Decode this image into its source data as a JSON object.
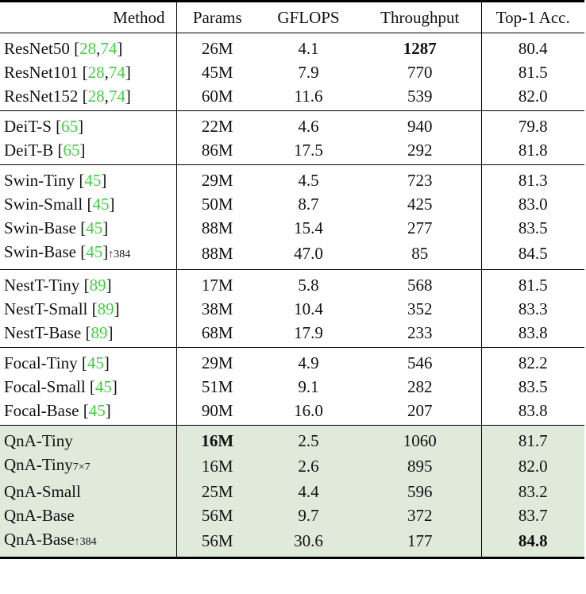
{
  "header": {
    "method": "Method",
    "params": "Params",
    "gflops": "GFLOPS",
    "throughput": "Throughput",
    "acc": "Top-1 Acc."
  },
  "colors": {
    "citation": "#3fd13f",
    "highlight_bg": "#dfeadb"
  },
  "groups": [
    [
      {
        "name": "ResNet50",
        "cite": [
          "28",
          "74"
        ],
        "suffix": "",
        "params": "26M",
        "gflops": "4.1",
        "throughput": "1287",
        "acc": "80.4",
        "bold": [
          "throughput"
        ]
      },
      {
        "name": "ResNet101",
        "cite": [
          "28",
          "74"
        ],
        "suffix": "",
        "params": "45M",
        "gflops": "7.9",
        "throughput": "770",
        "acc": "81.5",
        "bold": []
      },
      {
        "name": "ResNet152",
        "cite": [
          "28",
          "74"
        ],
        "suffix": "",
        "params": "60M",
        "gflops": "11.6",
        "throughput": "539",
        "acc": "82.0",
        "bold": []
      }
    ],
    [
      {
        "name": "DeiT-S",
        "cite": [
          "65"
        ],
        "suffix": "",
        "params": "22M",
        "gflops": "4.6",
        "throughput": "940",
        "acc": "79.8",
        "bold": []
      },
      {
        "name": "DeiT-B",
        "cite": [
          "65"
        ],
        "suffix": "",
        "params": "86M",
        "gflops": "17.5",
        "throughput": "292",
        "acc": "81.8",
        "bold": []
      }
    ],
    [
      {
        "name": "Swin-Tiny",
        "cite": [
          "45"
        ],
        "suffix": "",
        "params": "29M",
        "gflops": "4.5",
        "throughput": "723",
        "acc": "81.3",
        "bold": []
      },
      {
        "name": "Swin-Small",
        "cite": [
          "45"
        ],
        "suffix": "",
        "params": "50M",
        "gflops": "8.7",
        "throughput": "425",
        "acc": "83.0",
        "bold": []
      },
      {
        "name": "Swin-Base",
        "cite": [
          "45"
        ],
        "suffix": "",
        "params": "88M",
        "gflops": "15.4",
        "throughput": "277",
        "acc": "83.5",
        "bold": []
      },
      {
        "name": "Swin-Base",
        "cite": [
          "45"
        ],
        "suffix": "↑384",
        "params": "88M",
        "gflops": "47.0",
        "throughput": "85",
        "acc": "84.5",
        "bold": []
      }
    ],
    [
      {
        "name": "NestT-Tiny",
        "cite": [
          "89"
        ],
        "suffix": "",
        "params": "17M",
        "gflops": "5.8",
        "throughput": "568",
        "acc": "81.5",
        "bold": []
      },
      {
        "name": "NestT-Small",
        "cite": [
          "89"
        ],
        "suffix": "",
        "params": "38M",
        "gflops": "10.4",
        "throughput": "352",
        "acc": "83.3",
        "bold": []
      },
      {
        "name": "NestT-Base",
        "cite": [
          "89"
        ],
        "suffix": "",
        "params": "68M",
        "gflops": "17.9",
        "throughput": "233",
        "acc": "83.8",
        "bold": []
      }
    ],
    [
      {
        "name": "Focal-Tiny",
        "cite": [
          "45"
        ],
        "suffix": "",
        "params": "29M",
        "gflops": "4.9",
        "throughput": "546",
        "acc": "82.2",
        "bold": []
      },
      {
        "name": "Focal-Small",
        "cite": [
          "45"
        ],
        "suffix": "",
        "params": "51M",
        "gflops": "9.1",
        "throughput": "282",
        "acc": "83.5",
        "bold": []
      },
      {
        "name": "Focal-Base",
        "cite": [
          "45"
        ],
        "suffix": "",
        "params": "90M",
        "gflops": "16.0",
        "throughput": "207",
        "acc": "83.8",
        "bold": []
      }
    ],
    [
      {
        "name": "QnA-Tiny",
        "cite": [],
        "suffix": "",
        "params": "16M",
        "gflops": "2.5",
        "throughput": "1060",
        "acc": "81.7",
        "bold": [
          "params"
        ],
        "highlight": true
      },
      {
        "name": "QnA-Tiny",
        "cite": [],
        "suffix": "7×7",
        "params": "16M",
        "gflops": "2.6",
        "throughput": "895",
        "acc": "82.0",
        "bold": [],
        "highlight": true
      },
      {
        "name": "QnA-Small",
        "cite": [],
        "suffix": "",
        "params": "25M",
        "gflops": "4.4",
        "throughput": "596",
        "acc": "83.2",
        "bold": [],
        "highlight": true
      },
      {
        "name": "QnA-Base",
        "cite": [],
        "suffix": "",
        "params": "56M",
        "gflops": "9.7",
        "throughput": "372",
        "acc": "83.7",
        "bold": [],
        "highlight": true
      },
      {
        "name": "QnA-Base",
        "cite": [],
        "suffix": "↑384",
        "params": "56M",
        "gflops": "30.6",
        "throughput": "177",
        "acc": "84.8",
        "bold": [
          "acc"
        ],
        "highlight": true
      }
    ]
  ]
}
